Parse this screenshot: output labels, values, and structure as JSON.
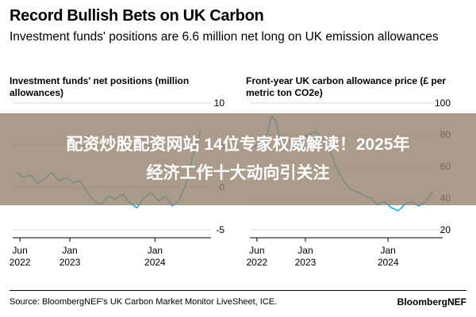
{
  "title": "Record Bullish Bets on UK Carbon",
  "subtitle": "Investment funds' positions are 6.6 million net long on UK emission allowances",
  "overlay": {
    "line1": "配资炒股配资网站 14位专家权威解读！2025年",
    "line2": "经济工作十大动向引关注"
  },
  "source": "Source: BloombergNEF's UK Carbon Market Monitor LiveSheet, ICE.",
  "brand": "BloombergNEF",
  "colors": {
    "line": "#1ab0e6",
    "text": "#000000",
    "grid": "#cccccc",
    "banner": "#96826e"
  },
  "chart_data": [
    {
      "type": "line",
      "title": "Investment funds' net positions (million allowances)",
      "y_axis_side": "right",
      "ylim": [
        -5,
        10
      ],
      "yticks": [
        10,
        5,
        0,
        -5
      ],
      "xlim": [
        "2022-05-01",
        "2024-08-01"
      ],
      "xticks": [
        {
          "date": "2022-06-01",
          "line1": "Jun",
          "line2": "2022"
        },
        {
          "date": "2023-01-01",
          "line1": "Jan",
          "line2": "2023"
        },
        {
          "date": "2024-01-01",
          "line1": "Jan",
          "line2": "2024"
        }
      ],
      "series": [
        {
          "x": [
            "2022-05-20",
            "2022-06-15",
            "2022-07-15",
            "2022-08-15",
            "2022-09-15",
            "2022-10-15",
            "2022-11-15",
            "2022-12-15",
            "2023-01-15",
            "2023-02-15",
            "2023-03-15",
            "2023-04-15",
            "2023-05-15",
            "2023-06-15",
            "2023-07-15",
            "2023-08-15",
            "2023-09-15",
            "2023-10-15",
            "2023-11-15",
            "2023-12-15",
            "2024-01-15",
            "2024-02-15",
            "2024-03-15",
            "2024-04-15",
            "2024-05-15",
            "2024-06-15",
            "2024-07-15"
          ],
          "values": [
            1.8,
            1.2,
            1.5,
            0.5,
            1.0,
            1.8,
            0.8,
            1.2,
            0.6,
            0.8,
            -0.5,
            -1.6,
            -2.0,
            -1.0,
            -1.4,
            -0.8,
            -1.8,
            -2.4,
            -1.2,
            -0.6,
            -1.6,
            -1.0,
            -2.2,
            -1.4,
            0.6,
            4.2,
            6.6
          ]
        }
      ]
    },
    {
      "type": "line",
      "title": "Front-year UK carbon allowance price (£ per metric ton CO2e)",
      "y_axis_side": "right",
      "ylim": [
        20,
        100
      ],
      "yticks": [
        100,
        80,
        60,
        40,
        20
      ],
      "xlim": [
        "2022-05-01",
        "2024-08-01"
      ],
      "xticks": [
        {
          "date": "2022-06-01",
          "line1": "Jun",
          "line2": "2022"
        },
        {
          "date": "2023-01-01",
          "line1": "Jan",
          "line2": "2023"
        },
        {
          "date": "2024-01-01",
          "line1": "Jan",
          "line2": "2024"
        }
      ],
      "series": [
        {
          "x": [
            "2022-05-20",
            "2022-06-15",
            "2022-07-15",
            "2022-08-05",
            "2022-08-25",
            "2022-09-15",
            "2022-10-15",
            "2022-11-15",
            "2022-12-15",
            "2023-01-15",
            "2023-02-15",
            "2023-03-15",
            "2023-04-15",
            "2023-05-15",
            "2023-06-15",
            "2023-07-15",
            "2023-08-15",
            "2023-09-15",
            "2023-10-15",
            "2023-11-15",
            "2023-12-15",
            "2024-01-15",
            "2024-02-15",
            "2024-03-15",
            "2024-04-15",
            "2024-05-15",
            "2024-06-15",
            "2024-07-15"
          ],
          "values": [
            72,
            76,
            80,
            92,
            88,
            74,
            70,
            72,
            78,
            80,
            82,
            78,
            72,
            60,
            52,
            46,
            44,
            42,
            40,
            36,
            38,
            34,
            32,
            36,
            38,
            35,
            38,
            44
          ]
        }
      ]
    }
  ]
}
